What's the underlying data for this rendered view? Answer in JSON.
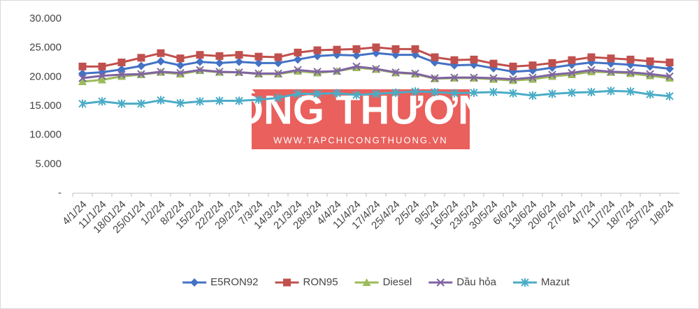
{
  "chart_data": {
    "type": "line",
    "watermark": {
      "title": "CÔNG THƯƠNG",
      "url": "WWW.TAPCHICONGTHUONG.VN"
    },
    "categories": [
      "4/1/24",
      "11/1/24",
      "18/01/24",
      "25/01/24",
      "1/2/24",
      "8/2/24",
      "15/2/24",
      "22/2/24",
      "29/2/24",
      "7/3/24",
      "14/3/24",
      "21/3/24",
      "28/3/24",
      "4/4/24",
      "11/4/24",
      "17/4/24",
      "25/4/24",
      "2/5/24",
      "9/5/24",
      "16/5/24",
      "23/5/24",
      "30/5/24",
      "6/6/24",
      "13/6/24",
      "20/6/24",
      "27/6/24",
      "4/7/24",
      "11/7/24",
      "18/7/24",
      "25/7/24",
      "1/8/24"
    ],
    "series": [
      {
        "name": "E5RON92",
        "color": "#4472c4",
        "marker": "diamond",
        "values": [
          20600,
          20800,
          21300,
          21900,
          22700,
          22000,
          22600,
          22400,
          22600,
          22400,
          22400,
          23000,
          23600,
          23800,
          23700,
          24100,
          23800,
          23800,
          22500,
          22000,
          22100,
          21500,
          20900,
          21100,
          21600,
          22100,
          22500,
          22300,
          22100,
          21800,
          21400
        ]
      },
      {
        "name": "RON95",
        "color": "#c0504d",
        "marker": "square",
        "values": [
          21800,
          21800,
          22500,
          23300,
          24100,
          23200,
          23800,
          23600,
          23800,
          23500,
          23400,
          24200,
          24600,
          24700,
          24800,
          25100,
          24800,
          24800,
          23400,
          22900,
          23000,
          22300,
          21800,
          22000,
          22400,
          22900,
          23400,
          23200,
          23000,
          22700,
          22500
        ]
      },
      {
        "name": "Diesel",
        "color": "#9bbb59",
        "marker": "triangle",
        "values": [
          19200,
          19500,
          20100,
          20400,
          20800,
          20500,
          21100,
          20800,
          20800,
          20500,
          20500,
          21000,
          20700,
          21000,
          21600,
          21300,
          20700,
          20500,
          19700,
          19800,
          19800,
          19600,
          19400,
          19600,
          20100,
          20400,
          20900,
          20800,
          20600,
          20200,
          19800
        ]
      },
      {
        "name": "Dầu hỏa",
        "color": "#8064a2",
        "marker": "x",
        "values": [
          19800,
          20200,
          20400,
          20500,
          20900,
          20700,
          21200,
          20900,
          20800,
          20600,
          20600,
          21200,
          20900,
          21000,
          21800,
          21400,
          20800,
          20600,
          19800,
          19900,
          19900,
          19800,
          19600,
          19900,
          20400,
          20700,
          21200,
          20900,
          20800,
          20500,
          20100
        ]
      },
      {
        "name": "Mazut",
        "color": "#4bacc6",
        "marker": "star",
        "values": [
          15400,
          15800,
          15400,
          15400,
          16000,
          15500,
          15800,
          15900,
          15900,
          16100,
          16400,
          17100,
          17100,
          17200,
          16900,
          17100,
          17300,
          17500,
          17400,
          17200,
          17300,
          17400,
          17200,
          16800,
          17100,
          17300,
          17400,
          17600,
          17500,
          17000,
          16700
        ]
      }
    ],
    "ylim": [
      0,
      30000
    ],
    "yticks": [
      {
        "value": 0,
        "label": "-"
      },
      {
        "value": 5000,
        "label": "5.000"
      },
      {
        "value": 10000,
        "label": "10.000"
      },
      {
        "value": 15000,
        "label": "15.000"
      },
      {
        "value": 20000,
        "label": "20.000"
      },
      {
        "value": 25000,
        "label": "25.000"
      },
      {
        "value": 30000,
        "label": "30.000"
      }
    ],
    "grid": false,
    "legend": "bottom"
  }
}
